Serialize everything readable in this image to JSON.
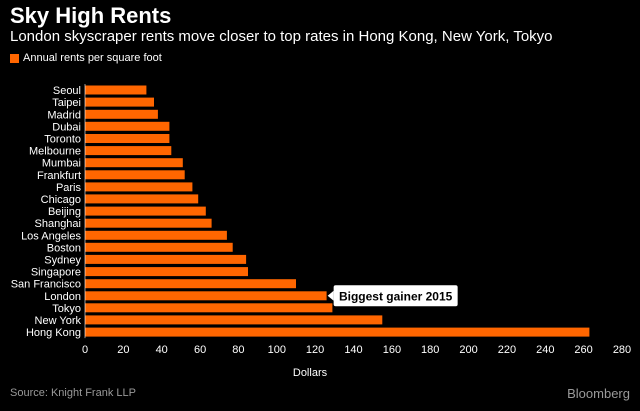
{
  "header": {
    "title": "Sky High Rents",
    "subtitle": "London skyscraper rents move closer to top rates in Hong Kong, New York, Tokyo"
  },
  "legend": {
    "label": "Annual rents per square foot"
  },
  "footer": {
    "source": "Source:  Knight Frank LLP",
    "brand": "Bloomberg"
  },
  "colors": {
    "bar": "#ff6600",
    "background": "#000000",
    "text": "#ffffff",
    "muted": "#9a9a9a",
    "callout_bg": "#ffffff"
  },
  "chart_data": {
    "type": "bar",
    "orientation": "horizontal",
    "categories": [
      "Seoul",
      "Taipei",
      "Madrid",
      "Dubai",
      "Toronto",
      "Melbourne",
      "Mumbai",
      "Frankfurt",
      "Paris",
      "Chicago",
      "Beijing",
      "Shanghai",
      "Los Angeles",
      "Boston",
      "Sydney",
      "Singapore",
      "San Francisco",
      "London",
      "Tokyo",
      "New York",
      "Hong Kong"
    ],
    "series": [
      {
        "name": "Annual rents per square foot",
        "values": [
          32,
          36,
          38,
          44,
          44,
          45,
          51,
          52,
          56,
          59,
          63,
          66,
          74,
          77,
          84,
          85,
          110,
          126,
          129,
          155,
          263
        ]
      }
    ],
    "xlabel": "Dollars",
    "ylabel": "",
    "xlim": [
      0,
      280
    ],
    "xticks": [
      0,
      20,
      40,
      60,
      80,
      100,
      120,
      140,
      160,
      180,
      200,
      220,
      240,
      260,
      280
    ],
    "grid": false,
    "legend_position": "top-left",
    "annotation": {
      "text": "Biggest gainer 2015",
      "target": "London"
    }
  }
}
